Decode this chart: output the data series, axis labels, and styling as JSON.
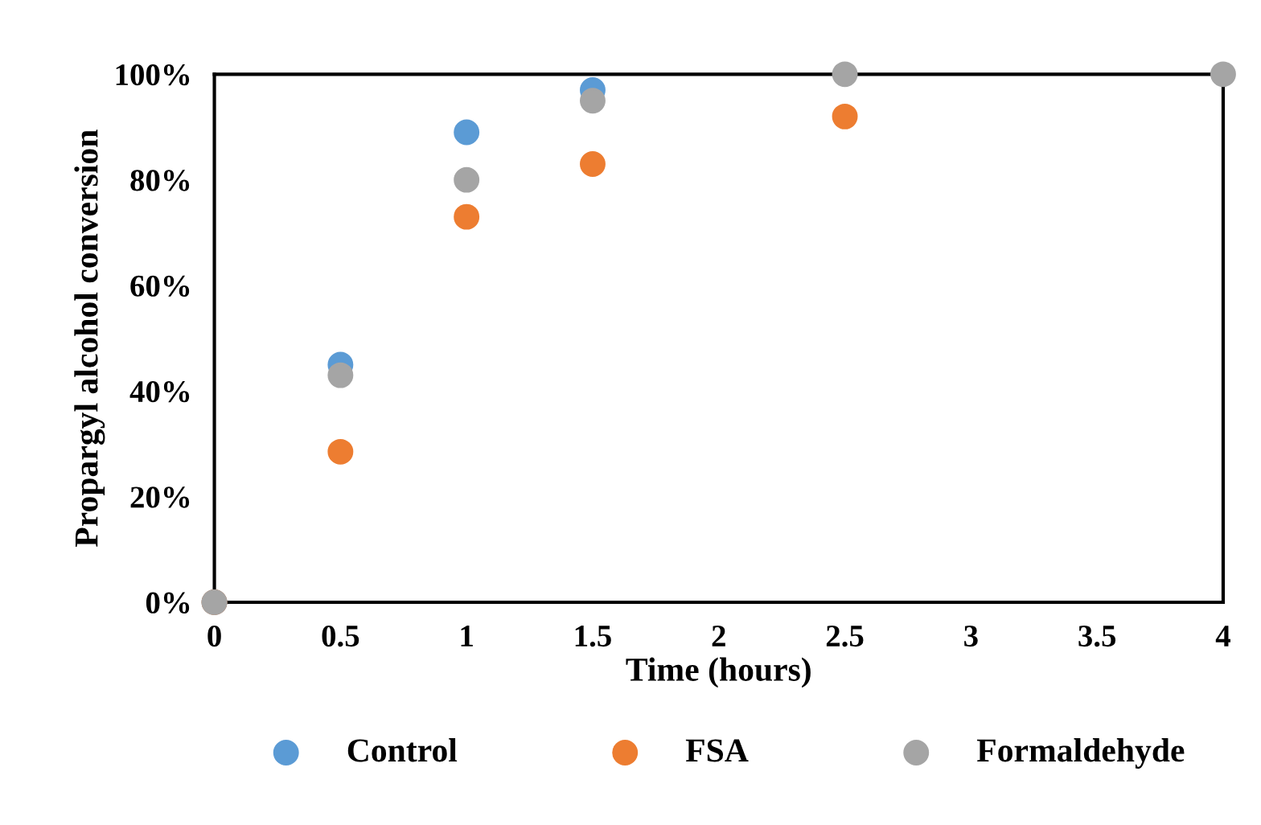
{
  "chart_data": {
    "type": "scatter",
    "xlabel": "Time (hours)",
    "ylabel": "Propargyl alcohol conversion",
    "x": [
      0,
      0.5,
      1,
      1.5,
      2.5,
      4
    ],
    "series": [
      {
        "name": "Control",
        "color": "#5b9bd5",
        "values": [
          0,
          45,
          89,
          97,
          null,
          null
        ]
      },
      {
        "name": "FSA",
        "color": "#ed7d31",
        "values": [
          0,
          28.5,
          73,
          83,
          92,
          null
        ]
      },
      {
        "name": "Formaldehyde",
        "color": "#a5a5a5",
        "values": [
          0,
          43,
          80,
          95,
          100,
          100
        ]
      }
    ],
    "xlim": [
      0,
      4
    ],
    "xticks": [
      0,
      0.5,
      1,
      1.5,
      2,
      2.5,
      3,
      3.5,
      4
    ],
    "ylim": [
      0,
      100
    ],
    "yticks": [
      {
        "value": 0,
        "label": "0%"
      },
      {
        "value": 20,
        "label": "20%"
      },
      {
        "value": 40,
        "label": "40%"
      },
      {
        "value": 60,
        "label": "60%"
      },
      {
        "value": 80,
        "label": "80%"
      },
      {
        "value": 100,
        "label": "100%"
      }
    ],
    "marker": "circle",
    "legend": "bottom",
    "grid": false
  }
}
